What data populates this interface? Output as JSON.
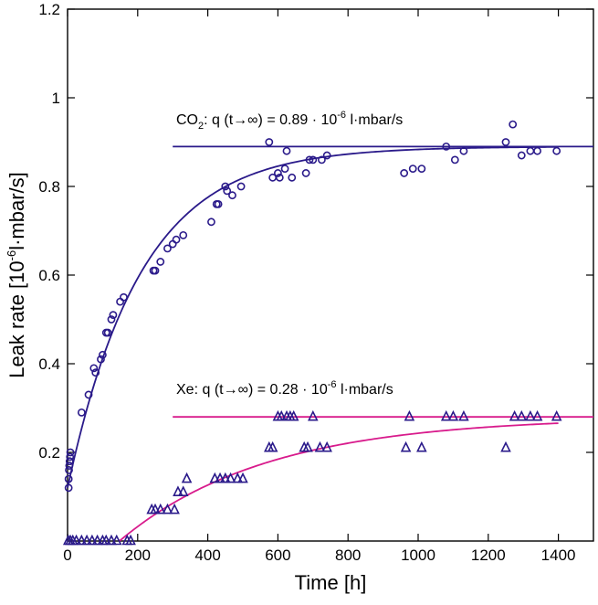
{
  "chart_data": {
    "type": "scatter",
    "xlabel": "Time [h]",
    "ylabel_main": "Leak rate  [10",
    "ylabel_sup": "-6",
    "ylabel_tail": "l·mbar/s]",
    "xlim": [
      0,
      1500
    ],
    "ylim": [
      0,
      1.2
    ],
    "x_ticks": [
      0,
      200,
      400,
      600,
      800,
      1000,
      1200,
      1400
    ],
    "y_ticks": [
      0.2,
      0.4,
      0.6,
      0.8,
      1,
      1.2
    ],
    "x_tick_labels": [
      "0",
      "200",
      "400",
      "600",
      "800",
      "1000",
      "1200",
      "1400"
    ],
    "y_tick_labels": [
      "0.2",
      "0.4",
      "0.6",
      "0.8",
      "1",
      "1.2"
    ],
    "grid": false,
    "colors": {
      "co2": "#2a1a8a",
      "xe": "#d81b8c",
      "axis": "#000000"
    },
    "annotations": {
      "co2": {
        "prefix": "CO",
        "sub": "2",
        "mid": ": q (t→∞) = 0.89 · 10",
        "sup": "-6",
        "tail": " l·mbar/s"
      },
      "xe": {
        "prefix": "Xe",
        "sub": "",
        "mid": ": q (t→∞) = 0.28 · 10",
        "sup": "-6",
        "tail": " l·mbar/s"
      }
    },
    "series": [
      {
        "name": "CO2",
        "marker": "circle",
        "points": [
          [
            3,
            0.12
          ],
          [
            3,
            0.14
          ],
          [
            4,
            0.16
          ],
          [
            5,
            0.17
          ],
          [
            6,
            0.18
          ],
          [
            7,
            0.19
          ],
          [
            8,
            0.2
          ],
          [
            40,
            0.29
          ],
          [
            60,
            0.33
          ],
          [
            75,
            0.39
          ],
          [
            80,
            0.38
          ],
          [
            95,
            0.41
          ],
          [
            100,
            0.42
          ],
          [
            110,
            0.47
          ],
          [
            115,
            0.47
          ],
          [
            125,
            0.5
          ],
          [
            130,
            0.51
          ],
          [
            150,
            0.54
          ],
          [
            160,
            0.55
          ],
          [
            245,
            0.61
          ],
          [
            250,
            0.61
          ],
          [
            265,
            0.63
          ],
          [
            285,
            0.66
          ],
          [
            300,
            0.67
          ],
          [
            310,
            0.68
          ],
          [
            330,
            0.69
          ],
          [
            410,
            0.72
          ],
          [
            425,
            0.76
          ],
          [
            430,
            0.76
          ],
          [
            450,
            0.8
          ],
          [
            455,
            0.79
          ],
          [
            470,
            0.78
          ],
          [
            495,
            0.8
          ],
          [
            575,
            0.9
          ],
          [
            585,
            0.82
          ],
          [
            600,
            0.83
          ],
          [
            605,
            0.82
          ],
          [
            620,
            0.84
          ],
          [
            625,
            0.88
          ],
          [
            640,
            0.82
          ],
          [
            680,
            0.83
          ],
          [
            690,
            0.86
          ],
          [
            700,
            0.86
          ],
          [
            725,
            0.86
          ],
          [
            740,
            0.87
          ],
          [
            960,
            0.83
          ],
          [
            985,
            0.84
          ],
          [
            1010,
            0.84
          ],
          [
            1080,
            0.89
          ],
          [
            1105,
            0.86
          ],
          [
            1130,
            0.88
          ],
          [
            1250,
            0.9
          ],
          [
            1270,
            0.94
          ],
          [
            1295,
            0.87
          ],
          [
            1320,
            0.88
          ],
          [
            1340,
            0.88
          ],
          [
            1395,
            0.88
          ]
        ]
      },
      {
        "name": "Xe",
        "marker": "triangle",
        "points": [
          [
            2,
            0
          ],
          [
            8,
            0
          ],
          [
            15,
            0
          ],
          [
            25,
            0
          ],
          [
            40,
            0
          ],
          [
            55,
            0
          ],
          [
            70,
            0
          ],
          [
            85,
            0
          ],
          [
            100,
            0
          ],
          [
            110,
            0
          ],
          [
            125,
            0
          ],
          [
            140,
            0
          ],
          [
            170,
            0
          ],
          [
            180,
            0
          ],
          [
            240,
            0.07
          ],
          [
            250,
            0.07
          ],
          [
            265,
            0.07
          ],
          [
            285,
            0.07
          ],
          [
            305,
            0.07
          ],
          [
            315,
            0.11
          ],
          [
            330,
            0.11
          ],
          [
            340,
            0.14
          ],
          [
            420,
            0.14
          ],
          [
            435,
            0.14
          ],
          [
            450,
            0.14
          ],
          [
            465,
            0.14
          ],
          [
            485,
            0.14
          ],
          [
            500,
            0.14
          ],
          [
            575,
            0.21
          ],
          [
            585,
            0.21
          ],
          [
            600,
            0.28
          ],
          [
            610,
            0.28
          ],
          [
            625,
            0.28
          ],
          [
            635,
            0.28
          ],
          [
            645,
            0.28
          ],
          [
            675,
            0.21
          ],
          [
            685,
            0.21
          ],
          [
            700,
            0.28
          ],
          [
            720,
            0.21
          ],
          [
            740,
            0.21
          ],
          [
            965,
            0.21
          ],
          [
            975,
            0.28
          ],
          [
            1010,
            0.21
          ],
          [
            1080,
            0.28
          ],
          [
            1100,
            0.28
          ],
          [
            1130,
            0.28
          ],
          [
            1250,
            0.21
          ],
          [
            1275,
            0.28
          ],
          [
            1295,
            0.28
          ],
          [
            1320,
            0.28
          ],
          [
            1340,
            0.28
          ],
          [
            1395,
            0.28
          ]
        ]
      }
    ],
    "fits": [
      {
        "series": "CO2",
        "asymptote": 0.89,
        "from_x": 0,
        "to_x": 1400,
        "initial": 0.12,
        "tau": 210
      },
      {
        "series": "Xe",
        "asymptote": 0.28,
        "from_x": 148,
        "to_x": 1400,
        "initial": 0.0,
        "tau": 420
      }
    ],
    "asymptote_lines": [
      {
        "series": "CO2",
        "y": 0.89,
        "x_from": 300,
        "x_to": 1500
      },
      {
        "series": "Xe",
        "y": 0.28,
        "x_from": 300,
        "x_to": 1500
      }
    ]
  }
}
